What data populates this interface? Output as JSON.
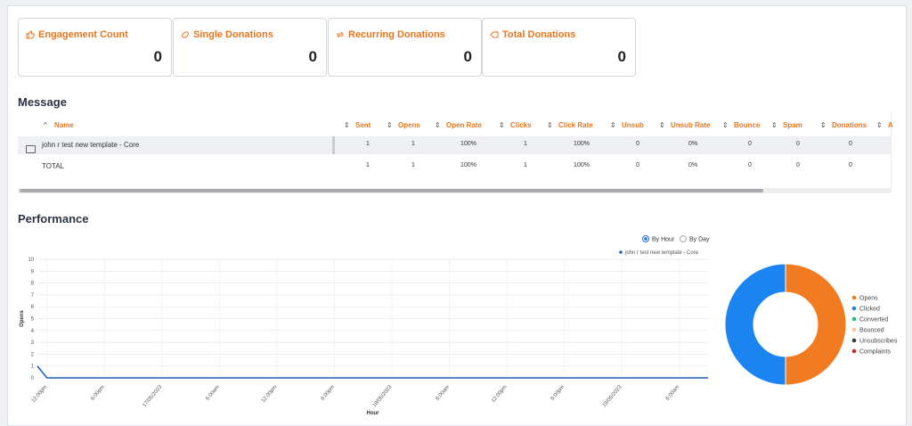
{
  "cards": [
    {
      "title": "Engagement Count",
      "value": 0
    },
    {
      "title": "Single Donations",
      "value": 0
    },
    {
      "title": "Recurring Donations",
      "value": 0
    },
    {
      "title": "Total Donations",
      "value": 0
    }
  ],
  "message": {
    "title": "Message",
    "columns": [
      "Name",
      "Sent",
      "Opens",
      "Open Rate",
      "Clicks",
      "Click Rate",
      "Unsub",
      "Unsub Rate",
      "Bounce",
      "Spam",
      "Donations",
      "A"
    ],
    "rows": [
      [
        "john r test new template - Core",
        "1",
        "1",
        "100%",
        "1",
        "100%",
        "0",
        "0%",
        "0",
        "0",
        "0"
      ],
      [
        "TOTAL",
        "1",
        "1",
        "100%",
        "1",
        "100%",
        "0",
        "0%",
        "0",
        "0",
        "0"
      ]
    ]
  },
  "performance": {
    "title": "Performance",
    "options": [
      {
        "label": "By Hour",
        "checked": true
      },
      {
        "label": "By Day",
        "checked": false
      }
    ]
  },
  "chart_data": [
    {
      "type": "line",
      "x_label": "Hour",
      "y_label": "Opens",
      "grid": true,
      "categories": [
        null,
        "12:00pm",
        null,
        null,
        null,
        null,
        null,
        "6:00pm",
        null,
        null,
        null,
        null,
        null,
        "17/05/2023",
        null,
        null,
        null,
        null,
        null,
        "6:00am",
        null,
        null,
        null,
        null,
        null,
        "12:00pm",
        null,
        null,
        null,
        null,
        null,
        "6:00pm",
        null,
        null,
        null,
        null,
        null,
        "18/05/2023",
        null,
        null,
        null,
        null,
        null,
        "6:00am",
        null,
        null,
        null,
        null,
        null,
        "12:00pm",
        null,
        null,
        null,
        null,
        null,
        "6:00pm",
        null,
        null,
        null,
        null,
        null,
        "19/05/2023",
        null,
        null,
        null,
        null,
        null,
        "6:00am",
        null,
        null,
        null
      ],
      "series": [
        {
          "name": "john r test new template - Core",
          "color": "#1f5fbf",
          "values": [
            1,
            0,
            0,
            0,
            0,
            0,
            0,
            0,
            0,
            0,
            0,
            0,
            0,
            0,
            0,
            0,
            0,
            0,
            0,
            0,
            0,
            0,
            0,
            0,
            0,
            0,
            0,
            0,
            0,
            0,
            0,
            0,
            0,
            0,
            0,
            0,
            0,
            0,
            0,
            0,
            0,
            0,
            0,
            0,
            0,
            0,
            0,
            0,
            0,
            0,
            0,
            0,
            0,
            0,
            0,
            0,
            0,
            0,
            0,
            0,
            0,
            0,
            0,
            0,
            0,
            0,
            0,
            0,
            0,
            0,
            0
          ]
        }
      ],
      "ylim": [
        0,
        10
      ],
      "yticks": [
        0,
        1,
        2,
        3,
        4,
        5,
        6,
        7,
        8,
        9,
        10
      ]
    },
    {
      "type": "pie",
      "categories": [
        "Opens",
        "Clicked",
        "Converted",
        "Bounced",
        "Unsubscribes",
        "Complaints"
      ],
      "values": [
        1,
        1,
        0,
        0,
        0,
        0
      ],
      "colors": [
        "#f07b20",
        "#1a85f0",
        "#1ec27a",
        "#f6c89f",
        "#333a45",
        "#d6262e"
      ]
    }
  ]
}
